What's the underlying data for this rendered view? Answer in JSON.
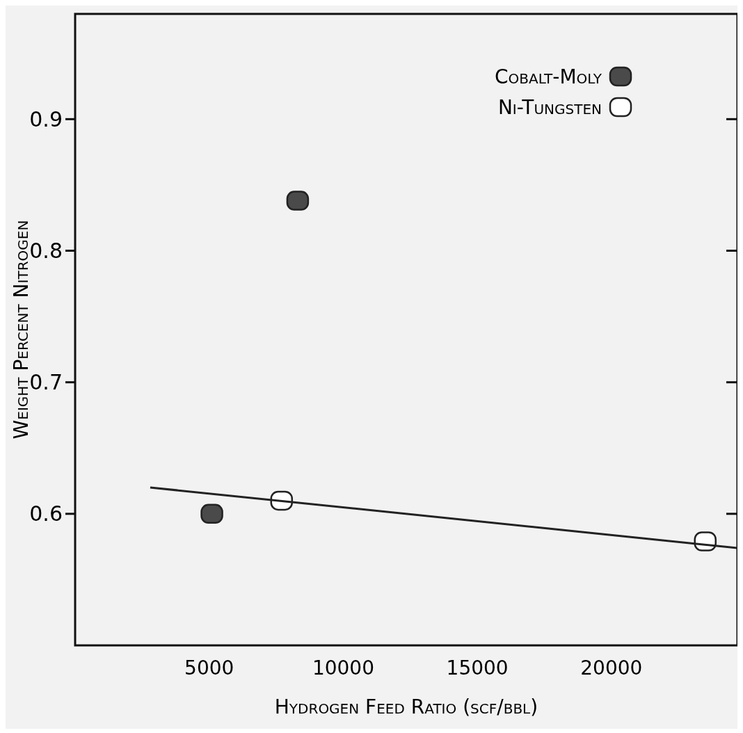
{
  "chart_data": {
    "type": "scatter",
    "xlabel": "Hydrogen Feed Ratio (scf/bbl)",
    "ylabel": "Weight Percent Nitrogen",
    "xlim": [
      0,
      24700
    ],
    "ylim": [
      0.5,
      0.98
    ],
    "xticks": [
      5000,
      10000,
      15000,
      20000
    ],
    "yticks": [
      0.6,
      0.7,
      0.8,
      0.9
    ],
    "grid": false,
    "legend": "top right",
    "marker": "square",
    "series": [
      {
        "name": "Cobalt-Moly",
        "color": "#4a4a4a",
        "x": [
          5100,
          8300
        ],
        "values": [
          0.6,
          0.838
        ]
      },
      {
        "name": "Ni-Tungsten",
        "color": "#ffffff",
        "x": [
          7700,
          23500
        ],
        "values": [
          0.61,
          0.579
        ]
      },
      {
        "type": "line",
        "color": "#222222",
        "x": [
          2800,
          24700
        ],
        "values": [
          0.62,
          0.574
        ],
        "marker": "none"
      }
    ]
  }
}
